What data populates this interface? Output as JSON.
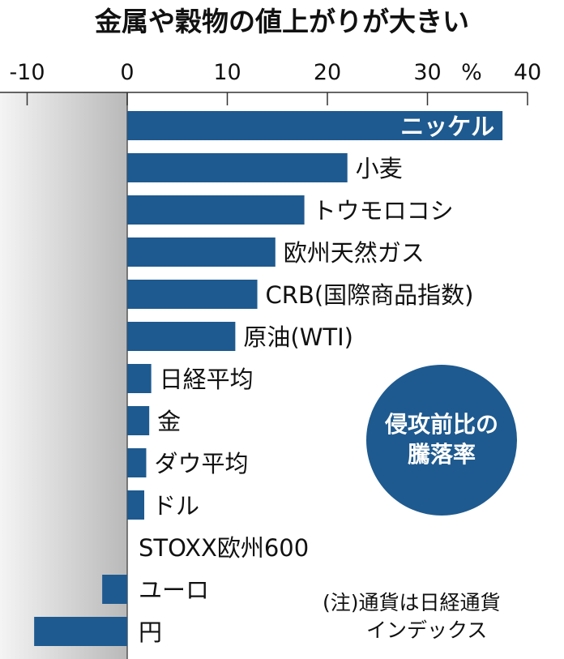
{
  "chart_data": {
    "type": "bar",
    "orientation": "horizontal",
    "title": "金属や穀物の値上がりが大きい",
    "unit_label": "%",
    "xlim": [
      -10,
      40
    ],
    "xticks": [
      "-10",
      "0",
      "10",
      "20",
      "30",
      "40"
    ],
    "grid": false,
    "categories": [
      "ニッケル",
      "小麦",
      "トウモロコシ",
      "欧州天然ガス",
      "CRB(国際商品指数)",
      "原油(WTI)",
      "日経平均",
      "金",
      "ダウ平均",
      "ドル",
      "STOXX欧州600",
      "ユーロ",
      "円"
    ],
    "values": [
      37.5,
      22.0,
      17.7,
      14.8,
      13.0,
      10.8,
      2.4,
      2.2,
      1.9,
      1.7,
      0.0,
      -2.5,
      -9.3
    ],
    "badge": [
      "侵攻前比の",
      "騰落率"
    ],
    "note": [
      "(注)通貨は日経通貨",
      "インデックス"
    ],
    "colors": {
      "bar": "#1e5a8f",
      "badge": "#1e5a8f",
      "negative_area": "#c8c8c8"
    }
  }
}
